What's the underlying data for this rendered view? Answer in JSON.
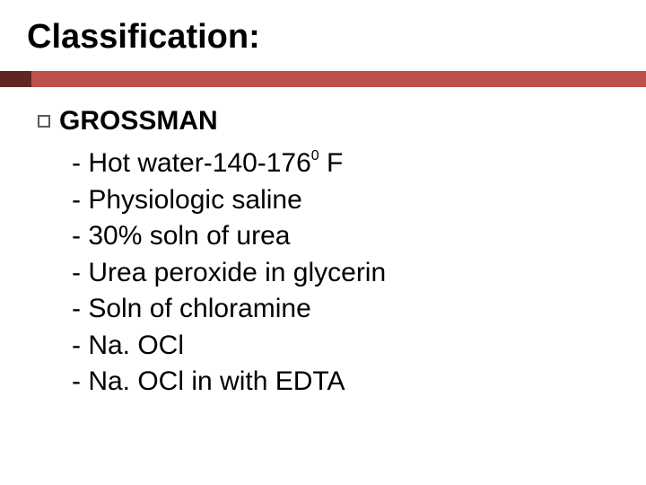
{
  "title": "Classification:",
  "heading": "GROSSMAN",
  "items": [
    {
      "prefix": "- Hot water-140-176",
      "sup": "0",
      "suffix": " F"
    },
    {
      "prefix": "- Physiologic saline",
      "sup": "",
      "suffix": ""
    },
    {
      "prefix": "- 30% soln of urea",
      "sup": "",
      "suffix": ""
    },
    {
      "prefix": "- Urea peroxide in glycerin",
      "sup": "",
      "suffix": ""
    },
    {
      "prefix": "- Soln of chloramine",
      "sup": "",
      "suffix": ""
    },
    {
      "prefix": "- Na. OCl",
      "sup": "",
      "suffix": ""
    },
    {
      "prefix": "- Na. OCl in with EDTA",
      "sup": "",
      "suffix": ""
    }
  ],
  "colors": {
    "accent_dark": "#632523",
    "accent_main": "#c0504d",
    "text": "#000000",
    "background": "#ffffff"
  },
  "typography": {
    "title_fontsize": 38,
    "body_fontsize": 30,
    "sup_fontsize": 16,
    "font_family": "Arial"
  }
}
